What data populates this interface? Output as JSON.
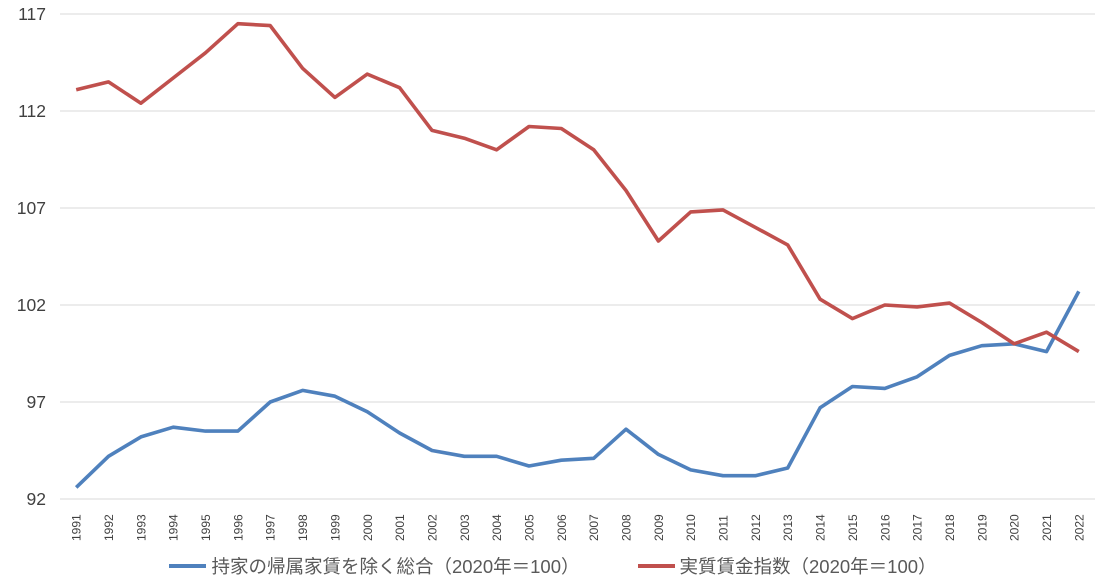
{
  "chart_data": {
    "type": "line",
    "x": [
      1991,
      1992,
      1993,
      1994,
      1995,
      1996,
      1997,
      1998,
      1999,
      2000,
      2001,
      2002,
      2003,
      2004,
      2005,
      2006,
      2007,
      2008,
      2009,
      2010,
      2011,
      2012,
      2013,
      2014,
      2015,
      2016,
      2017,
      2018,
      2019,
      2020,
      2021,
      2022
    ],
    "series": [
      {
        "name": "持家の帰属家賃を除く総合（2020年＝100）",
        "color": "#4F81BD",
        "values": [
          92.6,
          94.2,
          95.2,
          95.7,
          95.5,
          95.5,
          97.0,
          97.6,
          97.3,
          96.5,
          95.4,
          94.5,
          94.2,
          94.2,
          93.7,
          94.0,
          94.1,
          95.6,
          94.3,
          93.5,
          93.2,
          93.2,
          93.6,
          96.7,
          97.8,
          97.7,
          98.3,
          99.4,
          99.9,
          100.0,
          99.6,
          102.7
        ]
      },
      {
        "name": "実質賃金指数（2020年＝100）",
        "color": "#C0504D",
        "values": [
          113.1,
          113.5,
          112.4,
          113.7,
          115.0,
          116.5,
          116.4,
          114.2,
          112.7,
          113.9,
          113.2,
          111.0,
          110.6,
          110.0,
          111.2,
          111.1,
          110.0,
          107.9,
          105.3,
          106.8,
          106.9,
          106.0,
          105.1,
          102.3,
          101.3,
          102.0,
          101.9,
          102.1,
          101.1,
          100.0,
          100.6,
          99.6
        ]
      }
    ],
    "title": "",
    "xlabel": "",
    "ylabel": "",
    "ylim": [
      92,
      117
    ],
    "yticks": [
      92,
      97,
      102,
      107,
      112,
      117
    ],
    "grid": "horizontal-only",
    "legend_position": "bottom-center",
    "colors": {
      "gridline": "#D9D9D9",
      "axis_tick_label": "#404040",
      "legend_text": "#595959",
      "background": "#FFFFFF"
    }
  }
}
